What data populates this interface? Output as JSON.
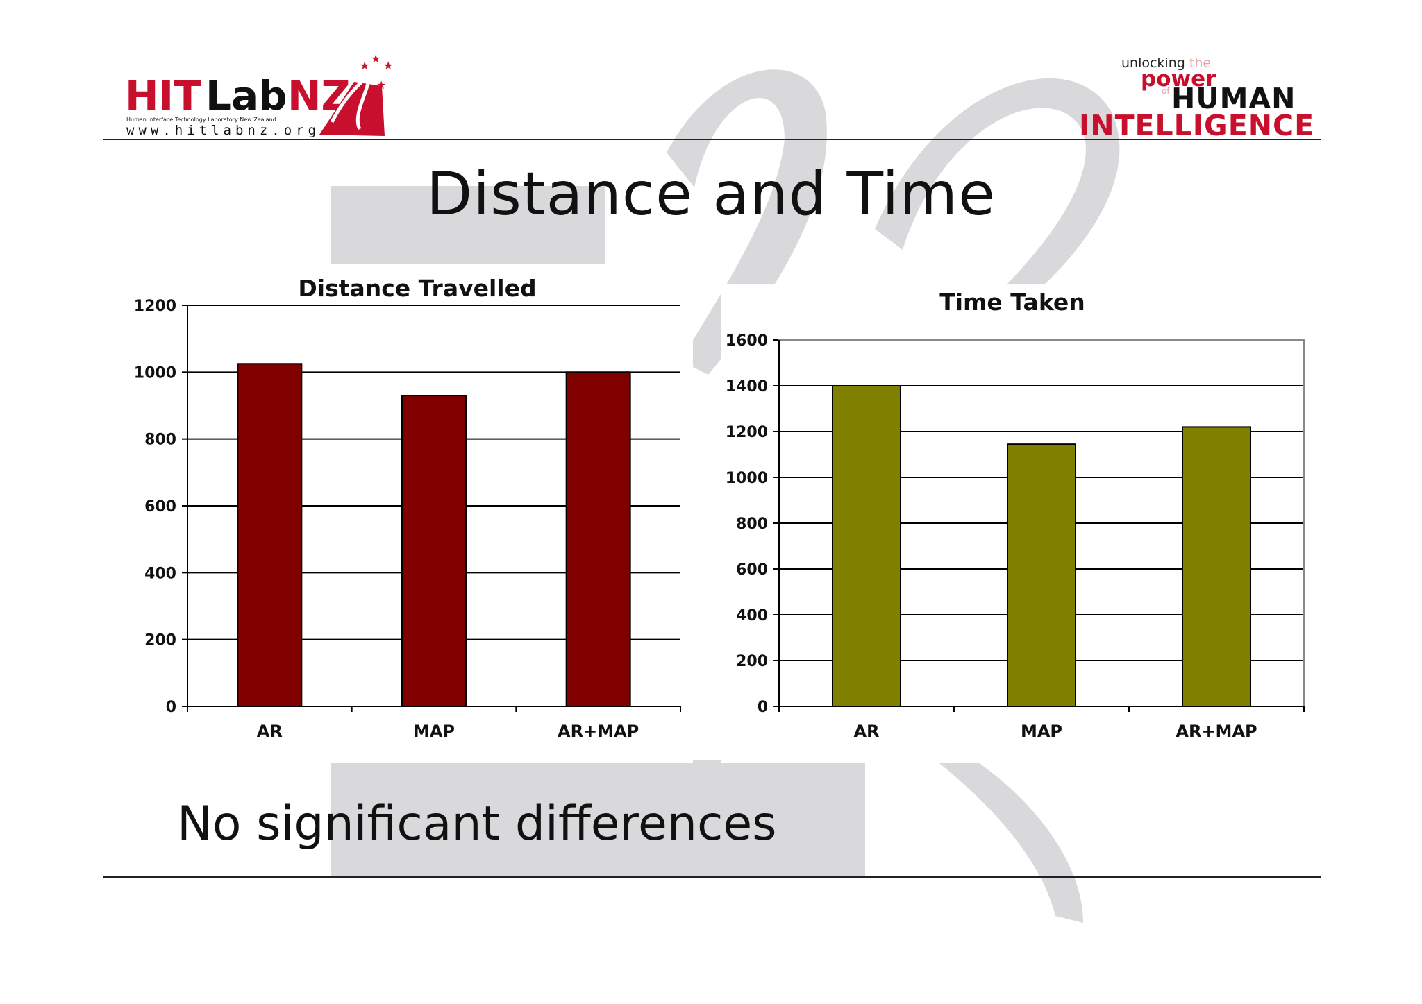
{
  "header": {
    "logo_left": {
      "wordmark": "HITLabNZ",
      "subtitle": "Human Interface Technology Laboratory New Zealand",
      "url": "www.hitlabnz.org"
    },
    "logo_right": {
      "line1_a": "unlocking",
      "line1_b": "the",
      "line2": "power",
      "line3_of": "of",
      "line3": "HUMAN",
      "line4": "INTELLIGENCE"
    }
  },
  "slide": {
    "title": "Distance and Time",
    "caption": "No significant differences"
  },
  "colors": {
    "distance_bar": "#800000",
    "time_bar": "#808000",
    "rule": "#222222",
    "watermark": "#d9d9dc"
  },
  "chart_data": [
    {
      "type": "bar",
      "title": "Distance Travelled",
      "categories": [
        "AR",
        "MAP",
        "AR+MAP"
      ],
      "values": [
        1025,
        930,
        1000
      ],
      "ylim": [
        0,
        1200
      ],
      "yticks": [
        0,
        200,
        400,
        600,
        800,
        1000,
        1200
      ],
      "grid": true,
      "xlabel": "",
      "ylabel": ""
    },
    {
      "type": "bar",
      "title": "Time Taken",
      "categories": [
        "AR",
        "MAP",
        "AR+MAP"
      ],
      "values": [
        1400,
        1145,
        1220
      ],
      "ylim": [
        0,
        1600
      ],
      "yticks": [
        0,
        200,
        400,
        600,
        800,
        1000,
        1200,
        1400,
        1600
      ],
      "grid": true,
      "xlabel": "",
      "ylabel": ""
    }
  ]
}
